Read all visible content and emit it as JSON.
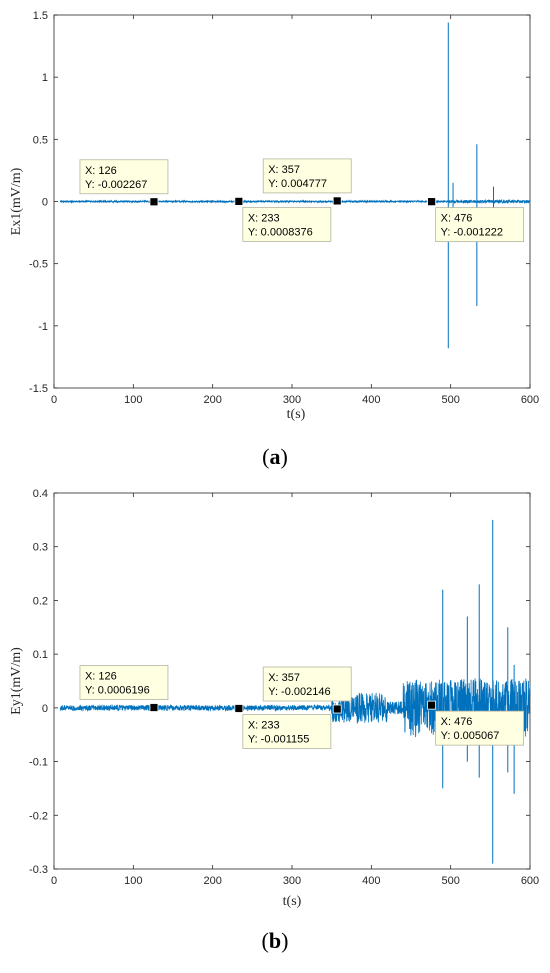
{
  "chart_data": [
    {
      "type": "line",
      "panel_label": "a",
      "xlabel": "t(s)",
      "ylabel": "Ex1(mV/m)",
      "xlim": [
        0,
        600
      ],
      "ylim": [
        -1.5,
        1.5
      ],
      "xticks": [
        0,
        100,
        200,
        300,
        400,
        500,
        600
      ],
      "xtick_labels": [
        "0",
        "100",
        "200",
        "300",
        "400",
        "500",
        "600"
      ],
      "yticks": [
        -1.5,
        -1,
        -0.5,
        0,
        0.5,
        1,
        1.5
      ],
      "ytick_labels": [
        "-1.5",
        "-1",
        "-0.5",
        "0",
        "0.5",
        "1",
        "1.5"
      ],
      "grid": false,
      "line_color": "#0072BD",
      "noise_profile": [
        {
          "from": 8,
          "to": 497,
          "amp": 0.006
        },
        {
          "from": 497,
          "to": 600,
          "amp": 0.012
        }
      ],
      "spikes": [
        {
          "x": 497,
          "ymax": 1.44,
          "ymin": -1.18
        },
        {
          "x": 533,
          "ymax": 0.46,
          "ymin": -0.84
        },
        {
          "x": 554,
          "ymax": 0.12,
          "ymin": -0.15
        },
        {
          "x": 503,
          "ymax": 0.15,
          "ymin": -0.2
        }
      ],
      "datatips": [
        {
          "x": 126,
          "y": -0.002267,
          "text_x": "X: 126",
          "text_y": "Y: -0.002267",
          "position": "above"
        },
        {
          "x": 233,
          "y": 0.0008376,
          "text_x": "X: 233",
          "text_y": "Y: 0.0008376",
          "position": "below"
        },
        {
          "x": 357,
          "y": 0.004777,
          "text_x": "X: 357",
          "text_y": "Y: 0.004777",
          "position": "above"
        },
        {
          "x": 476,
          "y": -0.001222,
          "text_x": "X: 476",
          "text_y": "Y: -0.001222",
          "position": "below"
        }
      ]
    },
    {
      "type": "line",
      "panel_label": "b",
      "xlabel": "t(s)",
      "ylabel": "Ey1(mV/m)",
      "xlim": [
        0,
        600
      ],
      "ylim": [
        -0.3,
        0.4
      ],
      "xticks": [
        0,
        100,
        200,
        300,
        400,
        500,
        600
      ],
      "xtick_labels": [
        "0",
        "100",
        "200",
        "300",
        "400",
        "500",
        "600"
      ],
      "yticks": [
        -0.3,
        -0.2,
        -0.1,
        0,
        0.1,
        0.2,
        0.3,
        0.4
      ],
      "ytick_labels": [
        "-0.3",
        "-0.2",
        "-0.1",
        "0",
        "0.1",
        "0.2",
        "0.3",
        "0.4"
      ],
      "grid": false,
      "line_color": "#0072BD",
      "noise_profile": [
        {
          "from": 8,
          "to": 350,
          "amp": 0.005
        },
        {
          "from": 350,
          "to": 420,
          "amp": 0.028
        },
        {
          "from": 420,
          "to": 440,
          "amp": 0.012
        },
        {
          "from": 440,
          "to": 600,
          "amp": 0.055
        }
      ],
      "spikes": [
        {
          "x": 490,
          "ymax": 0.22,
          "ymin": -0.15
        },
        {
          "x": 536,
          "ymax": 0.23,
          "ymin": -0.13
        },
        {
          "x": 553,
          "ymax": 0.35,
          "ymin": -0.29
        },
        {
          "x": 521,
          "ymax": 0.17,
          "ymin": -0.1
        },
        {
          "x": 572,
          "ymax": 0.15,
          "ymin": -0.12
        },
        {
          "x": 580,
          "ymax": 0.08,
          "ymin": -0.16
        }
      ],
      "datatips": [
        {
          "x": 126,
          "y": 0.0006196,
          "text_x": "X: 126",
          "text_y": "Y: 0.0006196",
          "position": "above"
        },
        {
          "x": 233,
          "y": -0.001155,
          "text_x": "X: 233",
          "text_y": "Y: -0.001155",
          "position": "below"
        },
        {
          "x": 357,
          "y": -0.002146,
          "text_x": "X: 357",
          "text_y": "Y: -0.002146",
          "position": "above"
        },
        {
          "x": 476,
          "y": 0.005067,
          "text_x": "X: 476",
          "text_y": "Y: 0.005067",
          "position": "below"
        }
      ]
    }
  ]
}
